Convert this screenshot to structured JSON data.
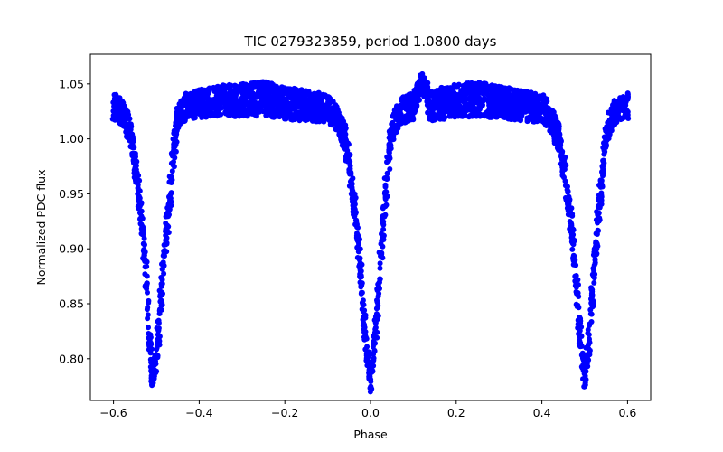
{
  "chart_data": {
    "type": "scatter",
    "title": "TIC 0279323859, period 1.0800 days",
    "xlabel": "Phase",
    "ylabel": "Normalized PDC flux",
    "xlim": [
      -0.654,
      0.654
    ],
    "ylim": [
      0.762,
      1.077
    ],
    "xticks": [
      -0.6,
      -0.4,
      -0.2,
      0.0,
      0.2,
      0.4,
      0.6
    ],
    "xtick_labels": [
      "−0.6",
      "−0.4",
      "−0.2",
      "0.0",
      "0.2",
      "0.4",
      "0.6"
    ],
    "yticks": [
      0.8,
      0.85,
      0.9,
      0.95,
      1.0,
      1.05
    ],
    "ytick_labels": [
      "0.80",
      "0.85",
      "0.90",
      "0.95",
      "1.00",
      "1.05"
    ],
    "grid": false,
    "series": [
      {
        "marker": "circle",
        "color": "#0000ff",
        "x": [
          -0.6,
          -0.58,
          -0.56,
          -0.545,
          -0.53,
          -0.52,
          -0.51,
          -0.5,
          -0.49,
          -0.48,
          -0.47,
          -0.46,
          -0.45,
          -0.43,
          -0.4,
          -0.35,
          -0.3,
          -0.25,
          -0.2,
          -0.15,
          -0.1,
          -0.08,
          -0.06,
          -0.045,
          -0.03,
          -0.02,
          -0.01,
          0.0,
          0.01,
          0.02,
          0.03,
          0.04,
          0.05,
          0.07,
          0.1,
          0.12,
          0.14,
          0.2,
          0.25,
          0.3,
          0.35,
          0.4,
          0.42,
          0.44,
          0.455,
          0.47,
          0.48,
          0.49,
          0.5,
          0.51,
          0.52,
          0.53,
          0.54,
          0.55,
          0.57,
          0.6
        ],
        "y": [
          1.03,
          1.025,
          1.005,
          0.965,
          0.905,
          0.85,
          0.78,
          0.8,
          0.85,
          0.9,
          0.94,
          0.985,
          1.02,
          1.03,
          1.032,
          1.035,
          1.035,
          1.037,
          1.033,
          1.03,
          1.028,
          1.02,
          1.0,
          0.965,
          0.91,
          0.86,
          0.815,
          0.775,
          0.82,
          0.87,
          0.925,
          0.975,
          1.01,
          1.025,
          1.03,
          1.055,
          1.03,
          1.035,
          1.036,
          1.034,
          1.03,
          1.028,
          1.02,
          1.0,
          0.965,
          0.92,
          0.87,
          0.82,
          0.78,
          0.82,
          0.87,
          0.92,
          0.965,
          1.005,
          1.025,
          1.03
        ],
        "y_spread": [
          0.012,
          0.012,
          0.012,
          0.012,
          0.012,
          0.012,
          0.008,
          0.012,
          0.012,
          0.012,
          0.012,
          0.012,
          0.012,
          0.012,
          0.013,
          0.014,
          0.015,
          0.016,
          0.015,
          0.014,
          0.013,
          0.012,
          0.012,
          0.012,
          0.012,
          0.012,
          0.008,
          0.008,
          0.012,
          0.012,
          0.012,
          0.012,
          0.012,
          0.012,
          0.013,
          0.005,
          0.014,
          0.015,
          0.016,
          0.015,
          0.014,
          0.013,
          0.012,
          0.012,
          0.012,
          0.012,
          0.012,
          0.012,
          0.008,
          0.012,
          0.012,
          0.012,
          0.012,
          0.012,
          0.012,
          0.012
        ]
      }
    ]
  }
}
